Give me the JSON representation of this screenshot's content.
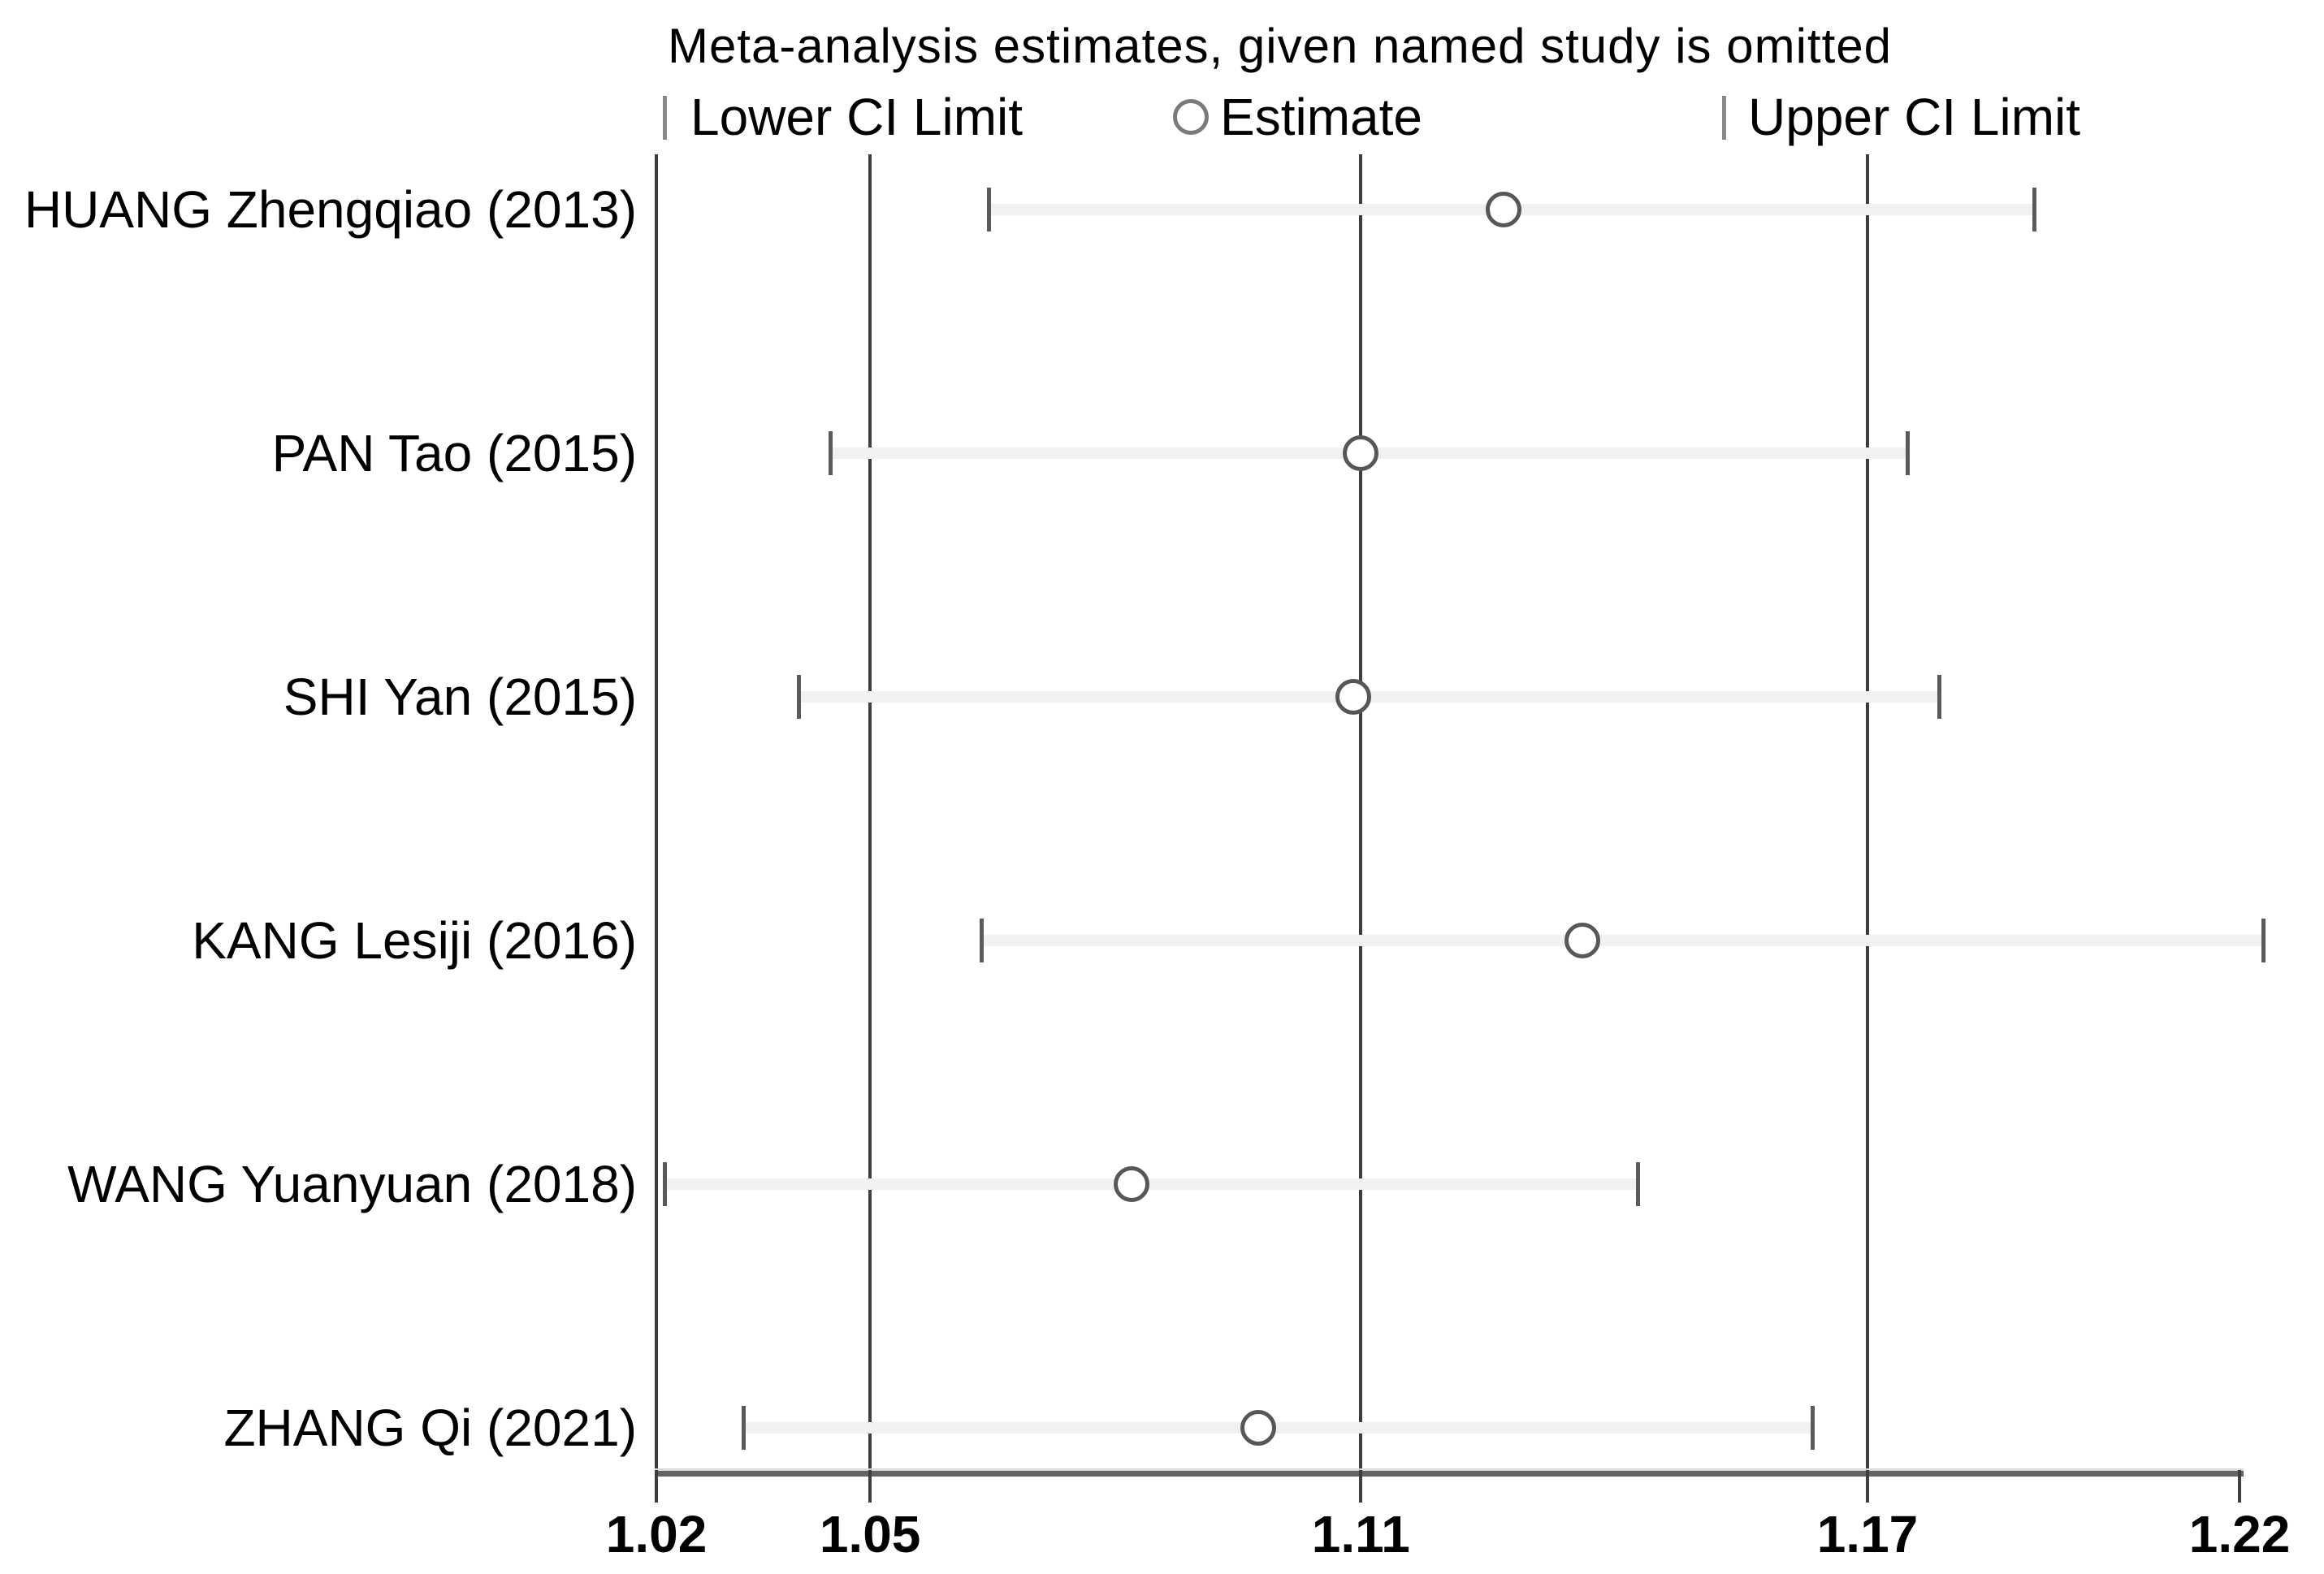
{
  "title": "Meta-analysis estimates, given named study is omitted",
  "legend": {
    "lower_label": "Lower CI Limit",
    "estimate_label": "Estimate",
    "upper_label": "Upper CI Limit"
  },
  "chart_data": {
    "type": "scatter",
    "subtype": "leave-one-out-sensitivity-forest-plot",
    "title": "Meta-analysis estimates, given named study is omitted",
    "xlim": [
      1.02,
      1.22
    ],
    "grid": true,
    "legend_position": "top",
    "legend_entries": [
      "Lower CI Limit",
      "Estimate",
      "Upper CI Limit"
    ],
    "x_ticks": [
      {
        "label": "1.02",
        "value": 1.02
      },
      {
        "label": "1.05",
        "value": 1.047
      },
      {
        "label": "1.11",
        "value": 1.109
      },
      {
        "label": "1.17",
        "value": 1.173
      },
      {
        "label": "1.22",
        "value": 1.22
      }
    ],
    "gridline_values": [
      1.02,
      1.047,
      1.109,
      1.173
    ],
    "studies": [
      {
        "label": "HUANG Zhengqiao (2013)",
        "lower": 1.062,
        "estimate": 1.127,
        "upper": 1.194
      },
      {
        "label": "PAN Tao (2015)",
        "lower": 1.042,
        "estimate": 1.109,
        "upper": 1.178
      },
      {
        "label": "SHI Yan (2015)",
        "lower": 1.038,
        "estimate": 1.108,
        "upper": 1.182
      },
      {
        "label": "KANG Lesiji (2016)",
        "lower": 1.061,
        "estimate": 1.137,
        "upper": 1.223
      },
      {
        "label": "WANG Yuanyuan (2018)",
        "lower": 1.021,
        "estimate": 1.08,
        "upper": 1.144
      },
      {
        "label": "ZHANG Qi (2021)",
        "lower": 1.031,
        "estimate": 1.096,
        "upper": 1.166
      }
    ]
  },
  "colors": {
    "background": "#ffffff",
    "text": "#000000",
    "gridline": "#3e3e3e",
    "axis_line": "#636363",
    "marker_stroke": "#575757",
    "ci_band": "#f1f1f1",
    "legend_marker": "#8a8a8a"
  }
}
